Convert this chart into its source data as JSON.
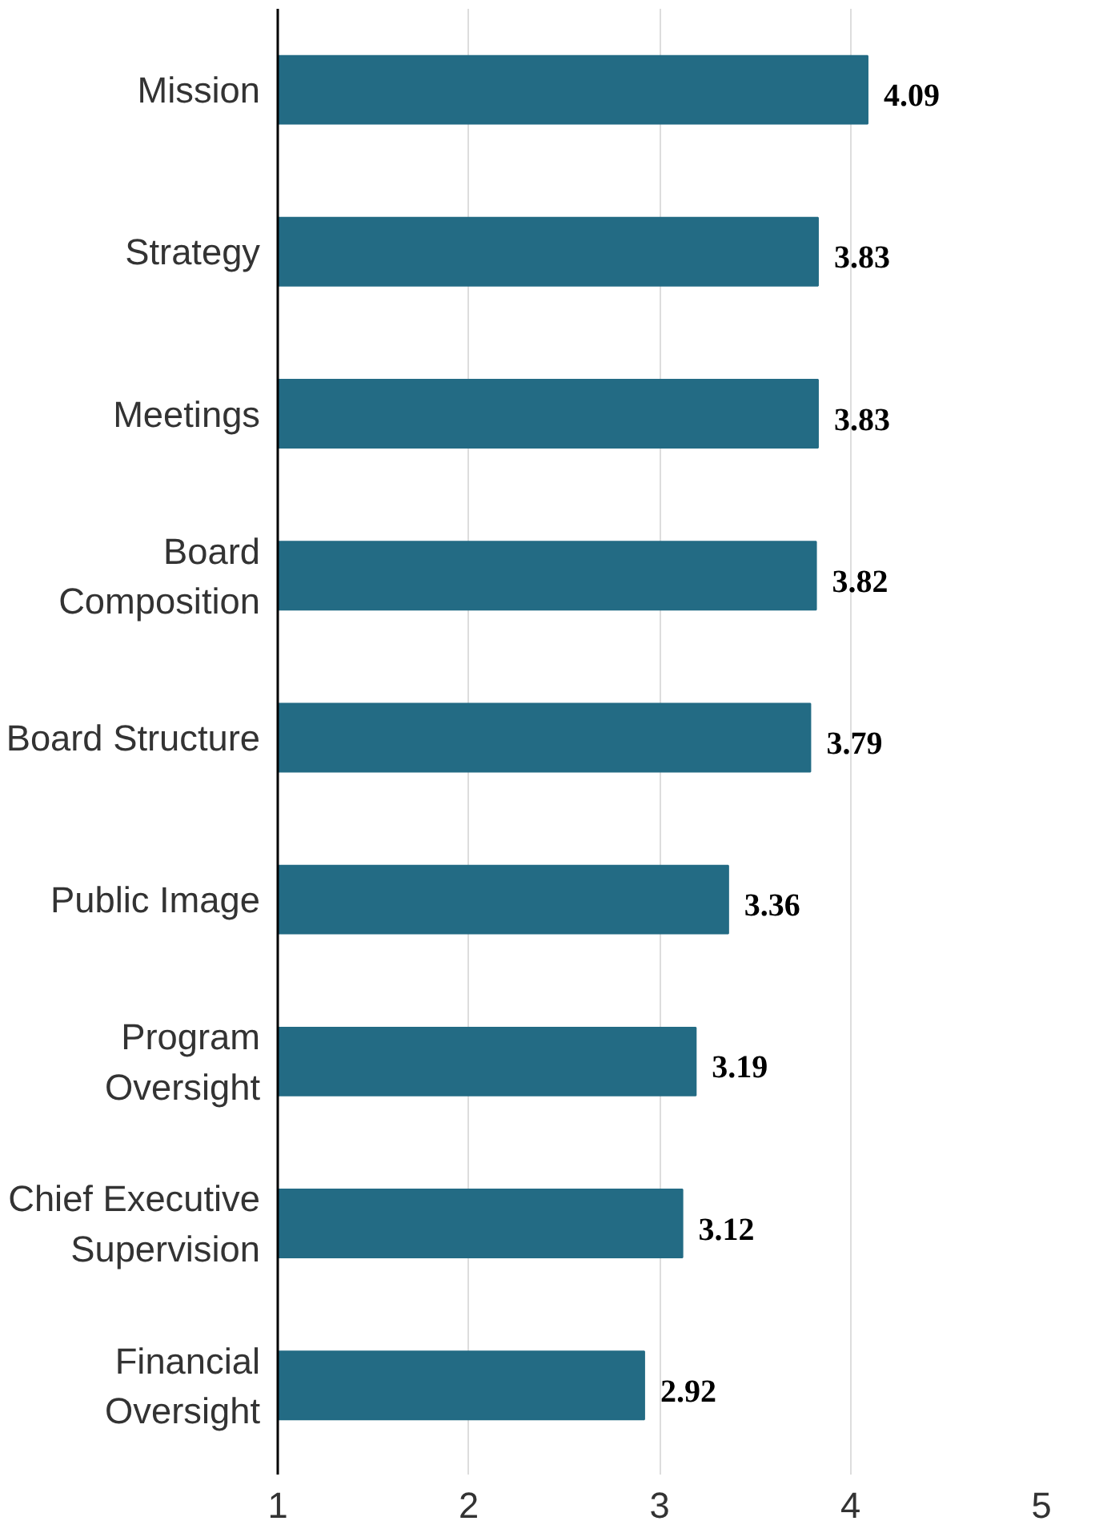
{
  "chart_data": {
    "type": "bar",
    "orientation": "horizontal",
    "categories": [
      "Mission",
      "Strategy",
      "Meetings",
      "Board\nComposition",
      "Board Structure",
      "Public Image",
      "Program\nOversight",
      "Chief Executive\nSupervision",
      "Financial\nOversight"
    ],
    "values": [
      4.09,
      3.83,
      3.83,
      3.82,
      3.79,
      3.36,
      3.19,
      3.12,
      2.92
    ],
    "color": "#236b84",
    "xlim": [
      1,
      5
    ],
    "xticks": [
      1,
      2,
      3,
      4,
      5
    ],
    "grid": "x",
    "data_labels": true
  }
}
